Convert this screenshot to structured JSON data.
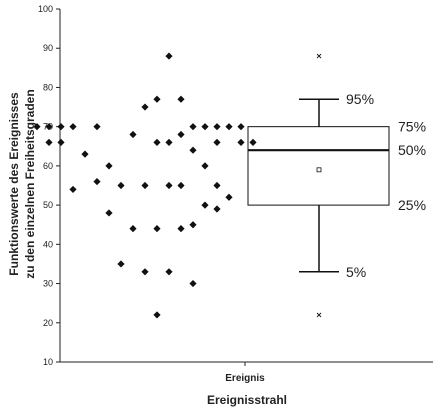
{
  "chart_data": {
    "type": "scatter",
    "ylabel_lines": [
      "Funktionswerte des Ereignisses",
      "zu den einzelnen Freiheitsgraden"
    ],
    "xlabel": "Ereignisstrahl",
    "category_label": "Ereignis",
    "ylim": [
      10,
      100
    ],
    "yticks": [
      10,
      20,
      30,
      40,
      50,
      60,
      70,
      80,
      90,
      100
    ],
    "grid": false,
    "dot_series": {
      "name": "",
      "points": [
        {
          "y": 88,
          "offset": 0
        },
        {
          "y": 77,
          "offset": -1
        },
        {
          "y": 77,
          "offset": 1
        },
        {
          "y": 75,
          "offset": -2
        },
        {
          "y": 70,
          "offset": -11
        },
        {
          "y": 70,
          "offset": -10
        },
        {
          "y": 70,
          "offset": -9
        },
        {
          "y": 70,
          "offset": -8
        },
        {
          "y": 70,
          "offset": -6
        },
        {
          "y": 70,
          "offset": 2
        },
        {
          "y": 70,
          "offset": 3
        },
        {
          "y": 70,
          "offset": 4
        },
        {
          "y": 70,
          "offset": 5
        },
        {
          "y": 70,
          "offset": 6
        },
        {
          "y": 68,
          "offset": -3
        },
        {
          "y": 68,
          "offset": 1
        },
        {
          "y": 66,
          "offset": -10
        },
        {
          "y": 66,
          "offset": -9
        },
        {
          "y": 66,
          "offset": -1
        },
        {
          "y": 66,
          "offset": 0
        },
        {
          "y": 66,
          "offset": 4
        },
        {
          "y": 66,
          "offset": 6
        },
        {
          "y": 66,
          "offset": 7
        },
        {
          "y": 64,
          "offset": 2
        },
        {
          "y": 63,
          "offset": -7
        },
        {
          "y": 60,
          "offset": -5
        },
        {
          "y": 60,
          "offset": 3
        },
        {
          "y": 56,
          "offset": -6
        },
        {
          "y": 55,
          "offset": -4
        },
        {
          "y": 55,
          "offset": -2
        },
        {
          "y": 55,
          "offset": 0
        },
        {
          "y": 55,
          "offset": 1
        },
        {
          "y": 55,
          "offset": 4
        },
        {
          "y": 54,
          "offset": -8
        },
        {
          "y": 52,
          "offset": 5
        },
        {
          "y": 50,
          "offset": 3
        },
        {
          "y": 49,
          "offset": 4
        },
        {
          "y": 48,
          "offset": -5
        },
        {
          "y": 44,
          "offset": -3
        },
        {
          "y": 44,
          "offset": -1
        },
        {
          "y": 44,
          "offset": 1
        },
        {
          "y": 45,
          "offset": 2
        },
        {
          "y": 35,
          "offset": -4
        },
        {
          "y": 33,
          "offset": -2
        },
        {
          "y": 33,
          "offset": 0
        },
        {
          "y": 30,
          "offset": 2
        },
        {
          "y": 22,
          "offset": -1
        }
      ]
    },
    "box": {
      "p5": 33,
      "p25": 50,
      "p50": 64,
      "p75": 70,
      "p95": 77,
      "mean": 59,
      "min": 22,
      "max": 88,
      "labels": {
        "p95": "95%",
        "p75": "75%",
        "p50": "50%",
        "p25": "25%",
        "p5": "5%"
      }
    }
  }
}
